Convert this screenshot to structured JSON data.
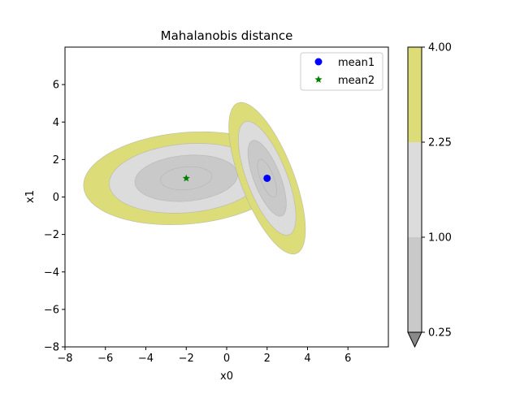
{
  "chart_data": {
    "type": "contour",
    "title": "Mahalanobis distance",
    "xlabel": "x0",
    "ylabel": "x1",
    "xlim": [
      -8,
      8
    ],
    "ylim": [
      -8,
      8
    ],
    "xticks": [
      -8,
      -6,
      -4,
      -2,
      0,
      2,
      4,
      6
    ],
    "yticks": [
      -8,
      -6,
      -4,
      -2,
      0,
      2,
      4,
      6
    ],
    "grid": false,
    "legend_position": "top-right",
    "legend": [
      {
        "label": "mean1",
        "marker": "circle",
        "color": "#0000ff"
      },
      {
        "label": "mean2",
        "marker": "star",
        "color": "#008000"
      }
    ],
    "points": [
      {
        "name": "mean1",
        "x": 2,
        "y": 1
      },
      {
        "name": "mean2",
        "x": -2,
        "y": 1
      }
    ],
    "contour_levels": [
      0.25,
      1.0,
      2.25,
      4.0
    ],
    "level_colors": [
      "#c9c9c9",
      "#dcdcdc",
      "#dcdc78"
    ],
    "extend_min_color": "#8a8a8a",
    "distributions": [
      {
        "name": "mean2",
        "center": [
          -2,
          1
        ],
        "covariance": [
          [
            6.46,
            0.48
          ],
          [
            0.48,
            1.54
          ]
        ]
      },
      {
        "name": "mean1",
        "center": [
          2,
          1
        ],
        "covariance": [
          [
            0.9,
            -1.3
          ],
          [
            -1.3,
            4.1
          ]
        ]
      }
    ],
    "colorbar": {
      "ticks": [
        "0.25",
        "1.00",
        "2.25",
        "4.00"
      ],
      "values": [
        0.25,
        1.0,
        2.25,
        4.0
      ],
      "extend": "min"
    }
  }
}
